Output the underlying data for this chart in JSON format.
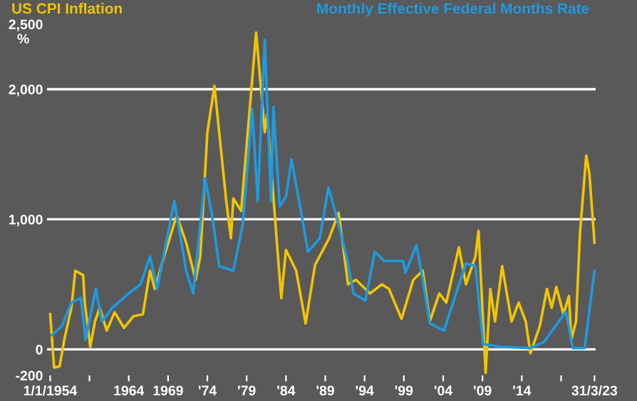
{
  "chart_data": {
    "type": "line",
    "ylabel": "%",
    "series": [
      {
        "name": "US CPI Inflation",
        "color": "#f2c500",
        "x": [
          1954.0,
          1954.5,
          1955.2,
          1955.8,
          1956.7,
          1957.2,
          1958.2,
          1958.4,
          1959.1,
          1959.7,
          1960.3,
          1961.2,
          1962.2,
          1963.4,
          1964.6,
          1965.8,
          1966.7,
          1967.3,
          1968.5,
          1970.1,
          1971.3,
          1972.5,
          1973.1,
          1974.0,
          1974.9,
          1976.4,
          1977.0,
          1977.3,
          1978.3,
          1980.2,
          1981.3,
          1981.6,
          1982.8,
          1983.4,
          1984.0,
          1985.3,
          1986.5,
          1987.7,
          1989.5,
          1990.7,
          1991.9,
          1992.9,
          1994.7,
          1996.2,
          1997.1,
          1998.7,
          2000.2,
          2001.4,
          2002.3,
          2003.5,
          2004.4,
          2006.0,
          2006.9,
          2008.1,
          2008.5,
          2009.4,
          2010.0,
          2010.6,
          2011.5,
          2012.7,
          2013.6,
          2014.5,
          2015.1,
          2016.3,
          2017.2,
          2017.8,
          2018.4,
          2019.3,
          2020.0,
          2020.3,
          2020.9,
          2021.4,
          2022.2,
          2022.6,
          2023.25
        ],
        "values": [
          270,
          -140,
          -130,
          75,
          320,
          605,
          570,
          360,
          20,
          215,
          320,
          145,
          285,
          165,
          255,
          270,
          605,
          465,
          715,
          1030,
          820,
          535,
          715,
          1670,
          2025,
          1140,
          855,
          1160,
          1065,
          2435,
          1670,
          1810,
          855,
          395,
          765,
          605,
          200,
          650,
          855,
          1050,
          500,
          535,
          430,
          500,
          465,
          235,
          535,
          605,
          215,
          430,
          360,
          785,
          500,
          715,
          910,
          -180,
          465,
          215,
          640,
          215,
          360,
          215,
          -30,
          180,
          465,
          320,
          480,
          270,
          410,
          75,
          215,
          890,
          1490,
          1350,
          820
        ]
      },
      {
        "name": "Monthly Effective Federal Months Rate",
        "color": "#1f9ae0",
        "x": [
          1954.2,
          1955.5,
          1956.7,
          1957.9,
          1958.5,
          1959.8,
          1960.6,
          1961.9,
          1964.0,
          1965.5,
          1966.7,
          1967.6,
          1969.8,
          1971.3,
          1972.2,
          1973.7,
          1974.6,
          1975.5,
          1977.3,
          1978.5,
          1979.7,
          1980.4,
          1981.3,
          1982.1,
          1982.4,
          1983.2,
          1984.0,
          1984.7,
          1985.9,
          1986.8,
          1988.3,
          1989.4,
          1990.4,
          1991.7,
          1992.6,
          1994.1,
          1995.3,
          1996.5,
          1998.9,
          1999.2,
          2000.6,
          2001.4,
          2002.3,
          2004.1,
          2006.9,
          2008.1,
          2009.1,
          2011.3,
          2015.0,
          2016.8,
          2019.6,
          2020.5,
          2022.0,
          2023.25
        ],
        "values": [
          110,
          180,
          360,
          395,
          75,
          465,
          215,
          320,
          430,
          500,
          715,
          465,
          1140,
          605,
          430,
          1315,
          1030,
          640,
          605,
          960,
          1850,
          1140,
          2380,
          1140,
          1865,
          1100,
          1175,
          1460,
          1065,
          750,
          855,
          1245,
          1030,
          715,
          430,
          375,
          750,
          680,
          680,
          590,
          800,
          535,
          200,
          145,
          660,
          640,
          40,
          20,
          10,
          55,
          290,
          10,
          10,
          605
        ]
      }
    ],
    "xlim": [
      1953.6,
      2023.4
    ],
    "xticks": [
      {
        "value": 1954,
        "label": "1/1/1954"
      },
      {
        "value": 1959,
        "label": null
      },
      1964,
      1969,
      {
        "value": 1974,
        "label": "'74"
      },
      {
        "value": 1979,
        "label": "'79"
      },
      {
        "value": 1984,
        "label": "'84"
      },
      {
        "value": 1989,
        "label": "'89"
      },
      {
        "value": 1994,
        "label": "'94"
      },
      {
        "value": 1999,
        "label": "'99"
      },
      {
        "value": 2004,
        "label": "'04"
      },
      {
        "value": 2009,
        "label": "'09"
      },
      {
        "value": 2014,
        "label": "'14"
      },
      {
        "value": 2019,
        "label": null
      },
      {
        "value": 2023.25,
        "label": "31/3/23"
      }
    ],
    "ylim": [
      -200,
      2500
    ],
    "yticks": [
      {
        "value": -200,
        "label": "-200"
      },
      0,
      {
        "value": 1000,
        "label": "1,000"
      },
      {
        "value": 2000,
        "label": "2,000"
      },
      {
        "value": 2500,
        "label": "2,500"
      }
    ],
    "ref_lines": [
      {
        "axis": "y",
        "value": 0,
        "color": "#ffffff"
      },
      {
        "axis": "y",
        "value": 1000,
        "color": "#ffffff"
      },
      {
        "axis": "y",
        "value": 2000,
        "color": "#ffffff"
      }
    ],
    "marker": "none",
    "line_style": "solid"
  }
}
